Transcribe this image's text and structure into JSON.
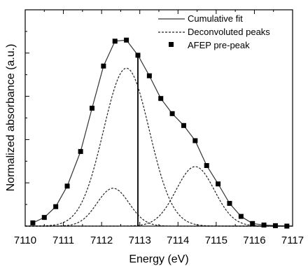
{
  "chart_data": {
    "type": "line",
    "xlabel": "Energy (eV)",
    "ylabel": "Normalized absorbance (a.u.)",
    "xlim": [
      7110,
      7117
    ],
    "ylim": [
      0,
      1
    ],
    "xticks": [
      "7110",
      "7111",
      "7112",
      "7113",
      "7114",
      "7115",
      "7116",
      "7117"
    ],
    "legend_position": "top-right",
    "grid": false,
    "vertical_line_x": 7112.95,
    "series": [
      {
        "name": "Cumulative fit",
        "style": "solid",
        "color": "#333333",
        "x": [
          7110.2,
          7110.5,
          7110.8,
          7111.1,
          7111.45,
          7111.75,
          7112.05,
          7112.35,
          7112.65,
          7112.95,
          7113.25,
          7113.55,
          7113.85,
          7114.15,
          7114.45,
          7114.75,
          7115.05,
          7115.35,
          7115.65,
          7115.95,
          7116.25,
          7116.55,
          7116.85
        ],
        "y": [
          0.015,
          0.04,
          0.09,
          0.185,
          0.345,
          0.545,
          0.74,
          0.855,
          0.86,
          0.79,
          0.695,
          0.59,
          0.52,
          0.465,
          0.395,
          0.28,
          0.195,
          0.105,
          0.045,
          0.012,
          0.005,
          0.002,
          0.0
        ]
      },
      {
        "name": "Deconvoluted peaks",
        "style": "dashed",
        "color": "#222222",
        "peaks": [
          {
            "center": 7112.3,
            "amplitude": 0.175,
            "sigma": 0.42
          },
          {
            "center": 7112.65,
            "amplitude": 0.73,
            "sigma": 0.6
          },
          {
            "center": 7114.45,
            "amplitude": 0.275,
            "sigma": 0.5
          }
        ]
      },
      {
        "name": "AFEP pre-peak",
        "style": "square-markers",
        "color": "#000000",
        "x": [
          7110.2,
          7110.5,
          7110.8,
          7111.1,
          7111.45,
          7111.75,
          7112.05,
          7112.35,
          7112.65,
          7112.95,
          7113.25,
          7113.55,
          7113.85,
          7114.15,
          7114.45,
          7114.75,
          7115.05,
          7115.35,
          7115.65,
          7115.95,
          7116.25,
          7116.55,
          7116.85
        ],
        "y": [
          0.015,
          0.04,
          0.09,
          0.185,
          0.345,
          0.545,
          0.74,
          0.855,
          0.86,
          0.79,
          0.695,
          0.59,
          0.52,
          0.465,
          0.395,
          0.28,
          0.195,
          0.105,
          0.045,
          0.012,
          0.005,
          0.002,
          0.0
        ]
      }
    ]
  }
}
